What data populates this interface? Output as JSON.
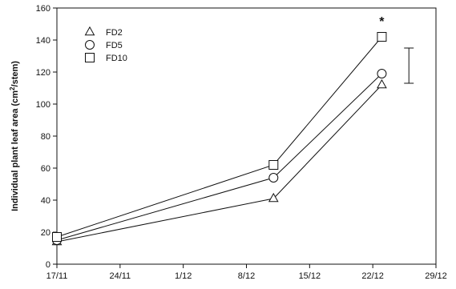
{
  "chart_data": {
    "type": "line",
    "title": "",
    "xlabel": "",
    "ylabel": "Individual plant leaf area (cm²/stem)",
    "ylabel_parts": {
      "before": "Individual plant leaf area (cm",
      "superscript": "2",
      "after": "/stem)"
    },
    "x_ticks": [
      "17/11",
      "24/11",
      "1/12",
      "8/12",
      "15/12",
      "22/12",
      "29/12"
    ],
    "y_ticks": [
      "0",
      "20",
      "40",
      "60",
      "80",
      "100",
      "120",
      "140",
      "160"
    ],
    "ylim": [
      0,
      160
    ],
    "grid": false,
    "legend_position": "top-left",
    "series": [
      {
        "name": "FD2",
        "marker": "triangle",
        "points": [
          {
            "x": "17/11",
            "y": 14
          },
          {
            "x": "11/12",
            "y": 41
          },
          {
            "x": "23/12",
            "y": 112
          }
        ]
      },
      {
        "name": "FD5",
        "marker": "circle",
        "points": [
          {
            "x": "17/11",
            "y": 15
          },
          {
            "x": "11/12",
            "y": 54
          },
          {
            "x": "23/12",
            "y": 119
          }
        ]
      },
      {
        "name": "FD10",
        "marker": "square",
        "points": [
          {
            "x": "17/11",
            "y": 17
          },
          {
            "x": "11/12",
            "y": 62
          },
          {
            "x": "23/12",
            "y": 142
          }
        ]
      }
    ],
    "error_bar": {
      "x": "26/12",
      "low": 113,
      "high": 135
    },
    "annotation": {
      "text": "*",
      "x": "23/12",
      "y": 152
    }
  }
}
